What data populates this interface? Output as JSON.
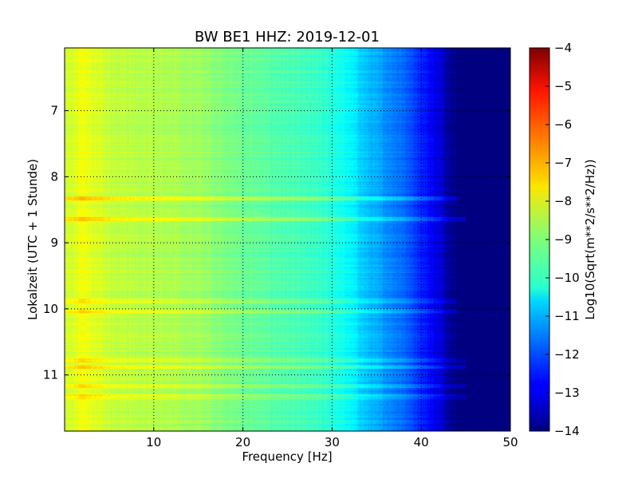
{
  "chart_data": {
    "type": "heatmap",
    "title": "BW BE1 HHZ: 2019-12-01",
    "xlabel": "Frequency [Hz]",
    "ylabel": "Lokalzeit (UTC + 1 Stunde)",
    "colorbar_label": "Log10(Sqrt(m**2/s**2/Hz))",
    "xlim": [
      0,
      50
    ],
    "ylim": [
      11.85,
      6.05
    ],
    "y_inverted": true,
    "x_ticks": [
      10,
      20,
      30,
      40,
      50
    ],
    "y_ticks": [
      7,
      8,
      9,
      10,
      11
    ],
    "colorbar_ticks": [
      -4,
      -5,
      -6,
      -7,
      -8,
      -9,
      -10,
      -11,
      -12,
      -13,
      -14
    ],
    "colorbar_tick_labels": [
      "−4",
      "−5",
      "−6",
      "−7",
      "−8",
      "−9",
      "−10",
      "−11",
      "−12",
      "−13",
      "−14"
    ],
    "color_range": [
      -14,
      -4
    ],
    "colormap": "jet",
    "grid": true,
    "grid_style": "dotted",
    "psd_profile": {
      "frequency_hz": [
        0,
        2,
        5,
        10,
        15,
        20,
        25,
        28,
        30,
        32,
        34,
        36,
        38,
        40,
        42,
        43,
        44,
        45,
        50
      ],
      "log10_value": [
        -8.3,
        -7.9,
        -8.3,
        -8.5,
        -8.7,
        -9.2,
        -9.5,
        -9.7,
        -9.9,
        -10.3,
        -10.9,
        -11.3,
        -11.7,
        -12.4,
        -13.1,
        -13.6,
        -14.0,
        -14.0,
        -14.0
      ]
    },
    "bright_bands": [
      {
        "time": 8.33,
        "level_offset": 0.7,
        "max_frequency_hz": 44
      },
      {
        "time": 8.64,
        "level_offset": 0.8,
        "max_frequency_hz": 45
      },
      {
        "time": 9.88,
        "level_offset": 0.4,
        "max_frequency_hz": 44
      },
      {
        "time": 10.03,
        "level_offset": 0.5,
        "max_frequency_hz": 44
      },
      {
        "time": 10.78,
        "level_offset": 0.4,
        "max_frequency_hz": 45
      },
      {
        "time": 10.88,
        "level_offset": 0.6,
        "max_frequency_hz": 45
      },
      {
        "time": 11.17,
        "level_offset": 0.6,
        "max_frequency_hz": 45
      },
      {
        "time": 11.33,
        "level_offset": 0.5,
        "max_frequency_hz": 45
      }
    ]
  }
}
